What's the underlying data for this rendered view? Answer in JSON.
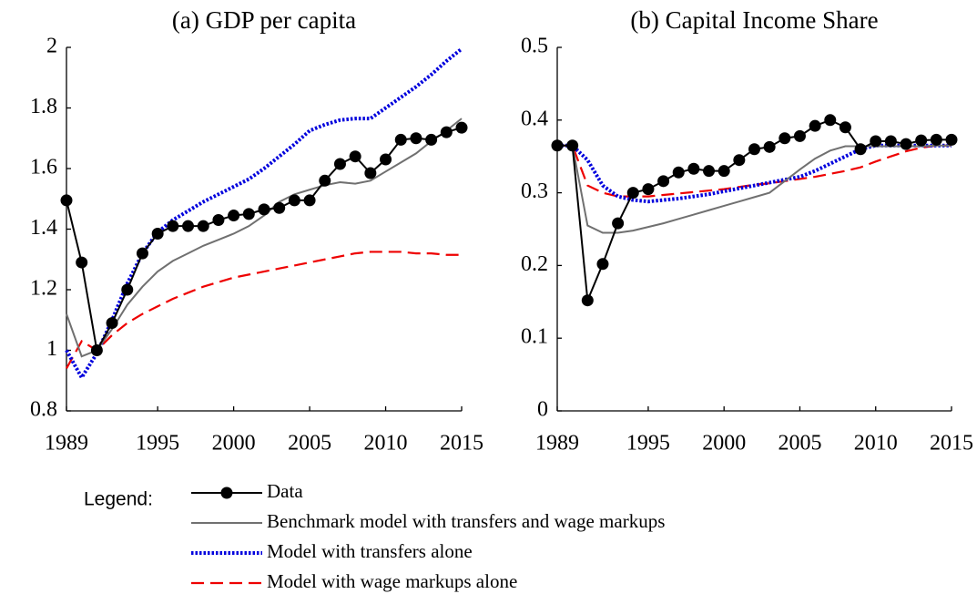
{
  "chart_data": [
    {
      "type": "line",
      "title": "(a) GDP per capita",
      "x": [
        1989,
        1990,
        1991,
        1992,
        1993,
        1994,
        1995,
        1996,
        1997,
        1998,
        1999,
        2000,
        2001,
        2002,
        2003,
        2004,
        2005,
        2006,
        2007,
        2008,
        2009,
        2010,
        2011,
        2012,
        2013,
        2014,
        2015
      ],
      "xlim": [
        1989,
        2015
      ],
      "xticks": [
        1989,
        1995,
        2000,
        2005,
        2010,
        2015
      ],
      "ylim": [
        0.8,
        2
      ],
      "yticks": [
        0.8,
        1,
        1.2,
        1.4,
        1.6,
        1.8,
        2
      ],
      "series": [
        {
          "name": "Data",
          "color": "#000000",
          "style": "solid",
          "marker": "circle",
          "values": [
            1.495,
            1.29,
            1.0,
            1.09,
            1.2,
            1.32,
            1.385,
            1.41,
            1.41,
            1.41,
            1.43,
            1.445,
            1.45,
            1.465,
            1.47,
            1.495,
            1.495,
            1.56,
            1.615,
            1.64,
            1.585,
            1.63,
            1.695,
            1.7,
            1.695,
            1.72,
            1.735
          ]
        },
        {
          "name": "Benchmark model with transfers and wage markups",
          "color": "#707070",
          "style": "solid",
          "values": [
            1.12,
            0.98,
            1.0,
            1.07,
            1.15,
            1.21,
            1.26,
            1.295,
            1.32,
            1.345,
            1.365,
            1.385,
            1.41,
            1.445,
            1.49,
            1.515,
            1.53,
            1.545,
            1.555,
            1.55,
            1.56,
            1.59,
            1.62,
            1.65,
            1.69,
            1.725,
            1.765
          ]
        },
        {
          "name": "Model with transfers alone",
          "color": "#0000dd",
          "style": "dotted",
          "values": [
            1.0,
            0.91,
            0.99,
            1.1,
            1.22,
            1.32,
            1.39,
            1.43,
            1.46,
            1.49,
            1.515,
            1.54,
            1.565,
            1.6,
            1.64,
            1.68,
            1.725,
            1.745,
            1.76,
            1.765,
            1.765,
            1.8,
            1.835,
            1.87,
            1.91,
            1.955,
            1.995
          ]
        },
        {
          "name": "Model with wage markups alone",
          "color": "#ee0000",
          "style": "dashed",
          "values": [
            0.94,
            1.03,
            1.0,
            1.05,
            1.09,
            1.12,
            1.145,
            1.17,
            1.19,
            1.21,
            1.225,
            1.24,
            1.25,
            1.26,
            1.27,
            1.28,
            1.29,
            1.3,
            1.31,
            1.32,
            1.325,
            1.325,
            1.325,
            1.32,
            1.32,
            1.315,
            1.315
          ]
        }
      ]
    },
    {
      "type": "line",
      "title": "(b) Capital Income Share",
      "x": [
        1989,
        1990,
        1991,
        1992,
        1993,
        1994,
        1995,
        1996,
        1997,
        1998,
        1999,
        2000,
        2001,
        2002,
        2003,
        2004,
        2005,
        2006,
        2007,
        2008,
        2009,
        2010,
        2011,
        2012,
        2013,
        2014,
        2015
      ],
      "xlim": [
        1989,
        2015
      ],
      "xticks": [
        1989,
        1995,
        2000,
        2005,
        2010,
        2015
      ],
      "ylim": [
        0,
        0.5
      ],
      "yticks": [
        0,
        0.1,
        0.2,
        0.3,
        0.4,
        0.5
      ],
      "series": [
        {
          "color": "#000000",
          "style": "solid",
          "marker": "circle",
          "values": [
            0.365,
            0.365,
            0.152,
            0.202,
            0.258,
            0.3,
            0.305,
            0.316,
            0.328,
            0.333,
            0.33,
            0.33,
            0.345,
            0.36,
            0.363,
            0.375,
            0.378,
            0.392,
            0.4,
            0.39,
            0.36,
            0.371,
            0.371,
            0.367,
            0.372,
            0.373,
            0.373
          ]
        },
        {
          "color": "#707070",
          "style": "solid",
          "values": [
            0.365,
            0.365,
            0.255,
            0.245,
            0.245,
            0.248,
            0.253,
            0.258,
            0.264,
            0.27,
            0.276,
            0.282,
            0.288,
            0.294,
            0.3,
            0.316,
            0.332,
            0.347,
            0.358,
            0.364,
            0.364,
            0.364,
            0.364,
            0.364,
            0.364,
            0.365,
            0.365
          ]
        },
        {
          "color": "#0000dd",
          "style": "dotted",
          "values": [
            0.365,
            0.365,
            0.345,
            0.31,
            0.295,
            0.29,
            0.288,
            0.29,
            0.292,
            0.295,
            0.298,
            0.302,
            0.306,
            0.31,
            0.314,
            0.318,
            0.322,
            0.33,
            0.34,
            0.35,
            0.36,
            0.365,
            0.365,
            0.365,
            0.365,
            0.365,
            0.365
          ]
        },
        {
          "color": "#ee0000",
          "style": "dashed",
          "values": [
            0.365,
            0.365,
            0.31,
            0.3,
            0.295,
            0.295,
            0.295,
            0.297,
            0.299,
            0.301,
            0.303,
            0.305,
            0.308,
            0.311,
            0.313,
            0.316,
            0.319,
            0.322,
            0.326,
            0.33,
            0.335,
            0.343,
            0.35,
            0.357,
            0.362,
            0.365,
            0.365
          ]
        }
      ]
    }
  ],
  "legend_title": "Legend:"
}
